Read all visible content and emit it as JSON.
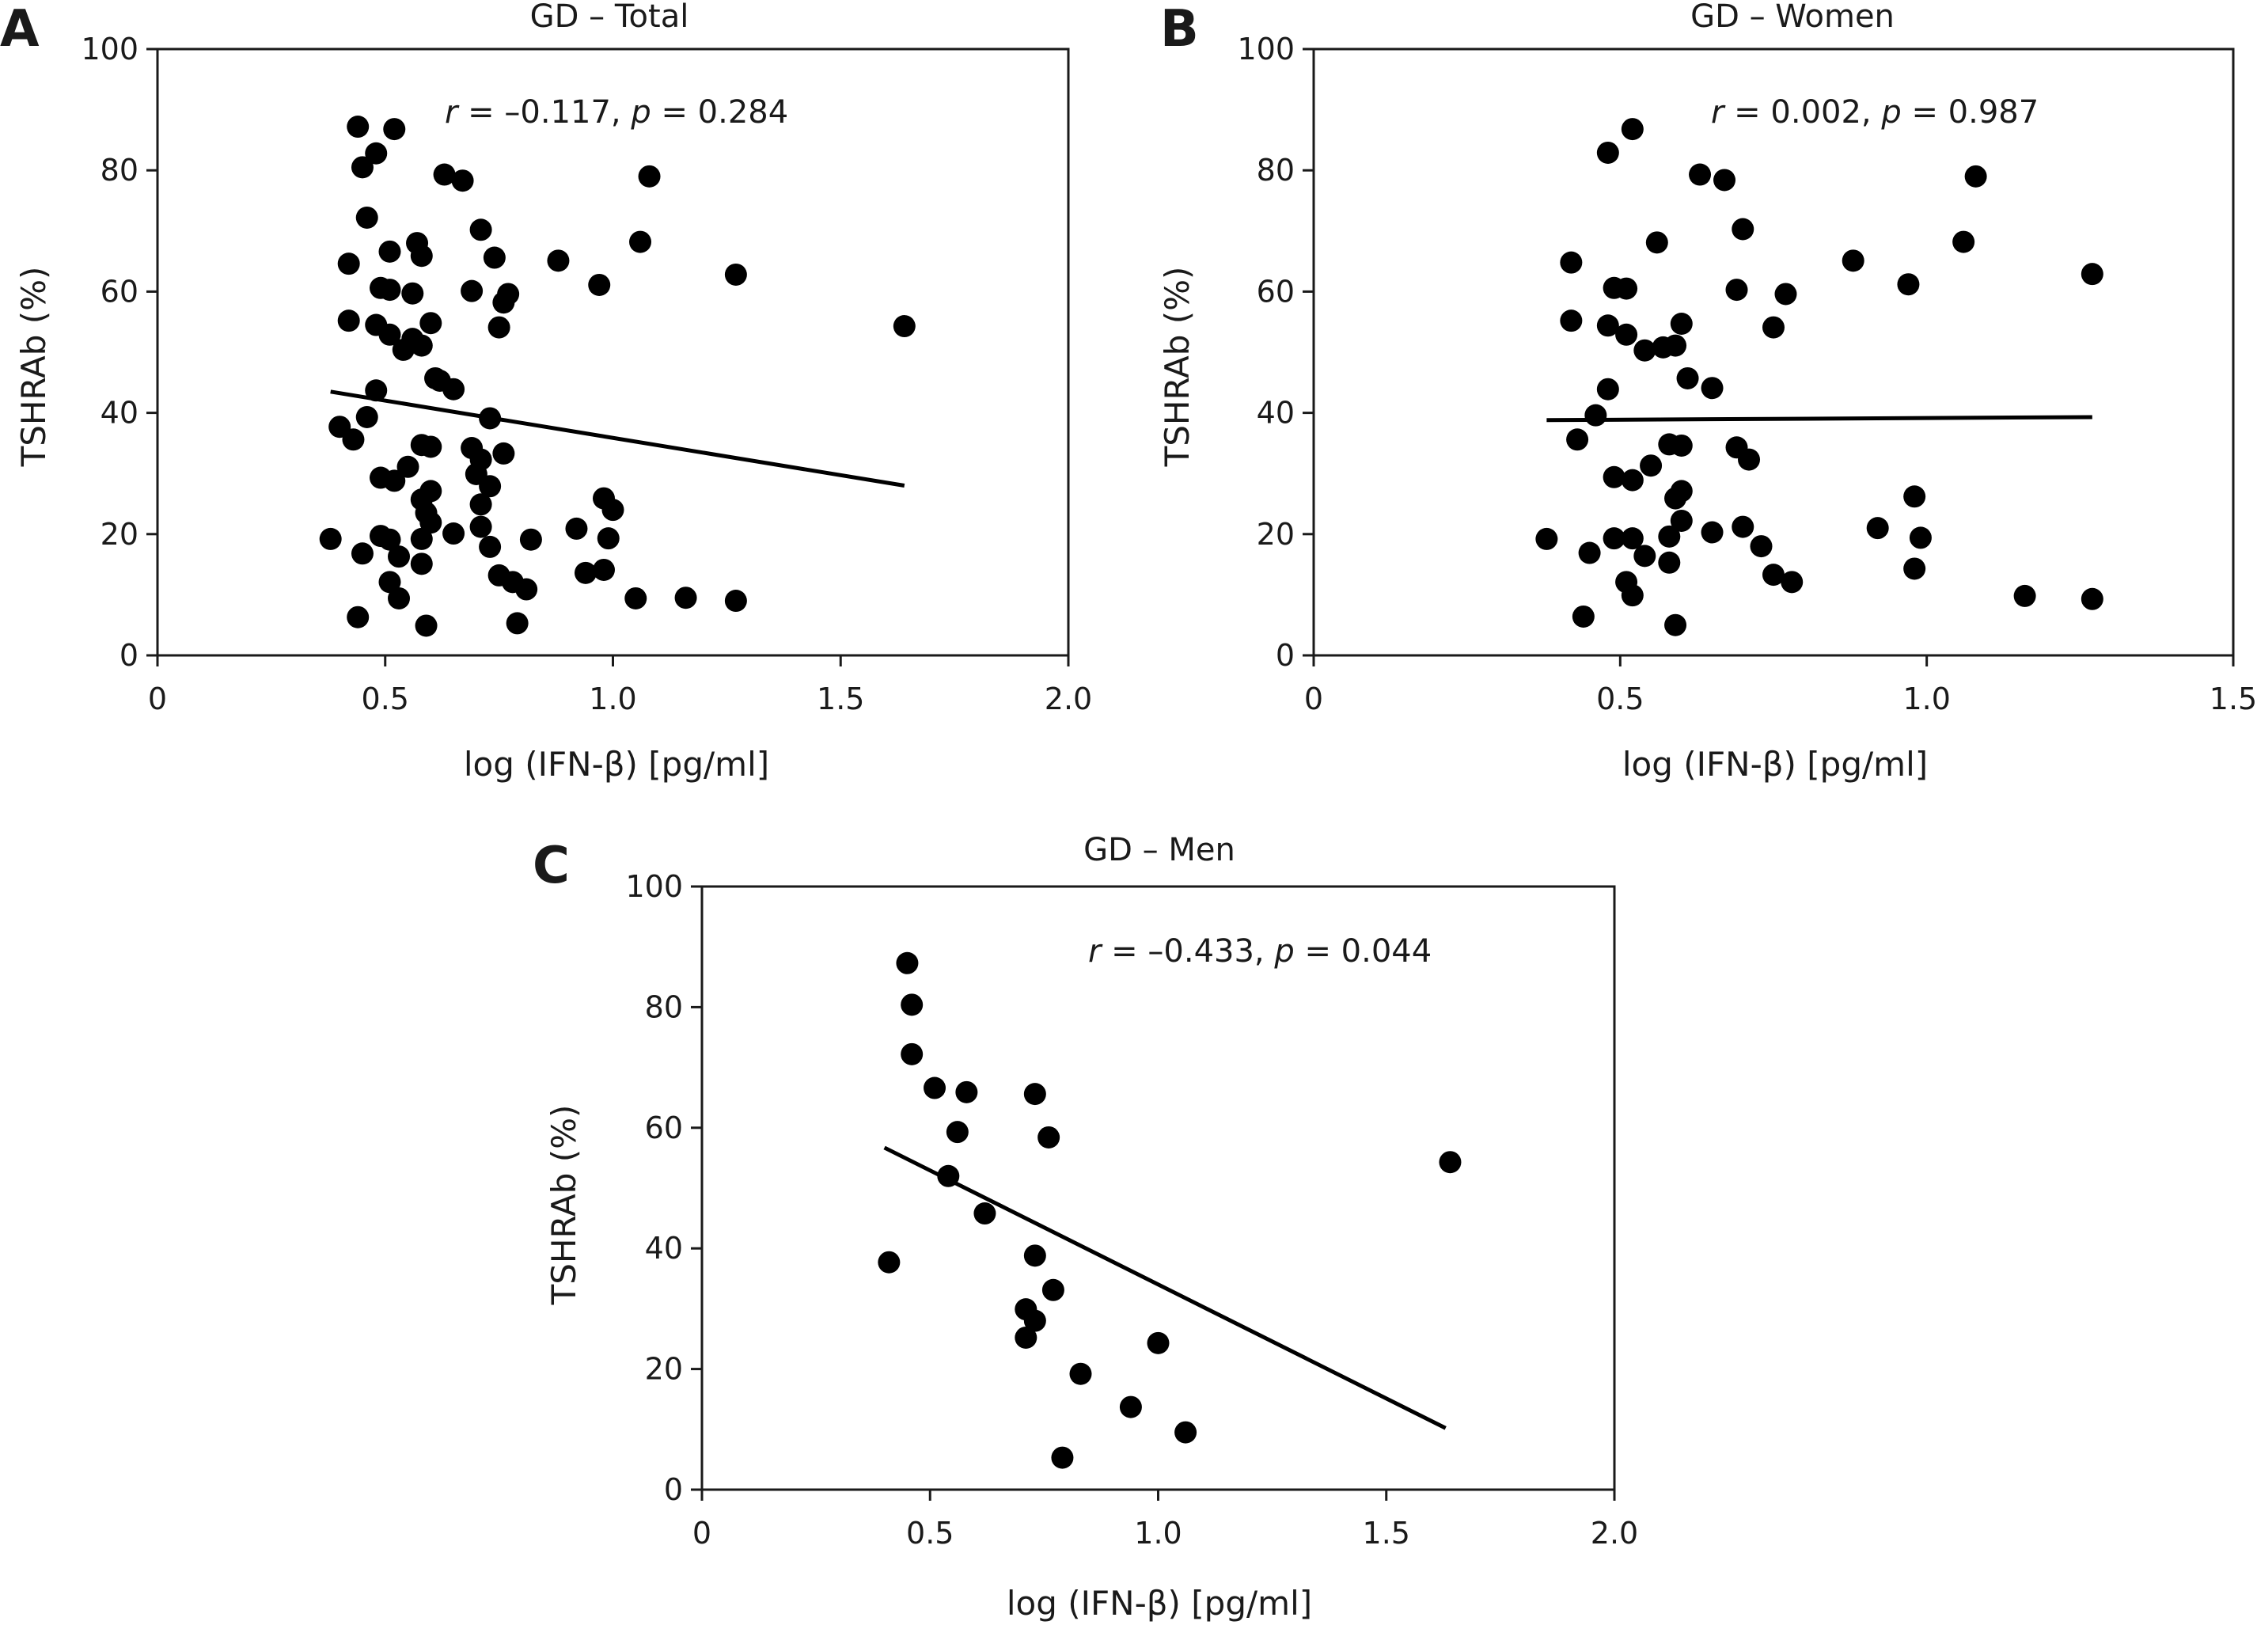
{
  "figure": {
    "colors": {
      "axis": "#1a1a1a",
      "point": "#000000",
      "line": "#000000",
      "background": "#ffffff"
    },
    "panels": [
      {
        "letter": "A",
        "title": "GD – Total",
        "stat": {
          "r_label": "r",
          "r_value": " = –0.117, ",
          "p_label": "p",
          "p_value": " = 0.284"
        },
        "xlabel": "log (IFN-β) [pg/ml]",
        "ylabel": "TSHRAb (%)"
      },
      {
        "letter": "B",
        "title": "GD – Women",
        "stat": {
          "r_label": "r",
          "r_value": " = 0.002, ",
          "p_label": "p",
          "p_value": " = 0.987"
        },
        "xlabel": "log (IFN-β) [pg/ml]",
        "ylabel": "TSHRAb (%)"
      },
      {
        "letter": "C",
        "title": "GD – Men",
        "stat": {
          "r_label": "r",
          "r_value": " = –0.433, ",
          "p_label": "p",
          "p_value": " = 0.044"
        },
        "xlabel": "log (IFN-β) [pg/ml]",
        "ylabel": "TSHRAb (%)"
      }
    ]
  },
  "chart_data": [
    {
      "type": "scatter",
      "title": "GD – Total",
      "xlabel": "log (IFN-β) [pg/ml]",
      "ylabel": "TSHRAb (%)",
      "xlim": [
        0,
        2.0
      ],
      "ylim": [
        0,
        100
      ],
      "xticks": [
        0,
        0.5,
        1.0,
        1.5,
        2.0
      ],
      "xtick_labels": [
        "0",
        "0.5",
        "1.0",
        "1.5",
        "2.0"
      ],
      "yticks": [
        0,
        20,
        40,
        60,
        80,
        100
      ],
      "ytick_labels": [
        "0",
        "20",
        "40",
        "60",
        "80",
        "100"
      ],
      "grid": false,
      "annotation": "r = –0.117, p = 0.284",
      "regression": {
        "x": [
          0.38,
          1.64
        ],
        "y": [
          43.5,
          28.0
        ]
      },
      "points": [
        [
          0.44,
          87.2
        ],
        [
          0.52,
          86.8
        ],
        [
          0.48,
          82.8
        ],
        [
          0.45,
          80.5
        ],
        [
          0.63,
          79.3
        ],
        [
          0.67,
          78.3
        ],
        [
          1.08,
          79.0
        ],
        [
          0.46,
          72.2
        ],
        [
          0.71,
          70.2
        ],
        [
          0.57,
          68.0
        ],
        [
          1.06,
          68.2
        ],
        [
          0.51,
          66.6
        ],
        [
          0.58,
          65.9
        ],
        [
          0.74,
          65.6
        ],
        [
          0.42,
          64.6
        ],
        [
          0.88,
          65.1
        ],
        [
          1.27,
          62.8
        ],
        [
          0.49,
          60.6
        ],
        [
          0.51,
          60.3
        ],
        [
          0.69,
          60.1
        ],
        [
          0.56,
          59.7
        ],
        [
          0.97,
          61.1
        ],
        [
          0.77,
          59.6
        ],
        [
          0.76,
          58.2
        ],
        [
          0.42,
          55.2
        ],
        [
          0.48,
          54.5
        ],
        [
          0.6,
          54.8
        ],
        [
          0.75,
          54.1
        ],
        [
          1.64,
          54.3
        ],
        [
          0.51,
          52.9
        ],
        [
          0.56,
          52.2
        ],
        [
          0.54,
          50.4
        ],
        [
          0.58,
          51.1
        ],
        [
          0.61,
          45.7
        ],
        [
          0.62,
          45.3
        ],
        [
          0.65,
          43.9
        ],
        [
          0.48,
          43.7
        ],
        [
          0.4,
          37.7
        ],
        [
          0.46,
          39.3
        ],
        [
          0.73,
          39.1
        ],
        [
          0.43,
          35.6
        ],
        [
          0.58,
          34.7
        ],
        [
          0.6,
          34.4
        ],
        [
          0.69,
          34.2
        ],
        [
          0.76,
          33.3
        ],
        [
          0.55,
          31.1
        ],
        [
          0.71,
          32.3
        ],
        [
          0.49,
          29.3
        ],
        [
          0.52,
          28.8
        ],
        [
          0.73,
          27.9
        ],
        [
          0.7,
          29.9
        ],
        [
          0.6,
          27.1
        ],
        [
          0.58,
          25.7
        ],
        [
          0.71,
          24.9
        ],
        [
          0.98,
          25.9
        ],
        [
          0.59,
          23.5
        ],
        [
          1.0,
          24.0
        ],
        [
          0.6,
          21.9
        ],
        [
          0.71,
          21.2
        ],
        [
          0.38,
          19.2
        ],
        [
          0.49,
          19.7
        ],
        [
          0.51,
          19.1
        ],
        [
          0.58,
          19.2
        ],
        [
          0.65,
          20.1
        ],
        [
          0.92,
          20.9
        ],
        [
          0.99,
          19.3
        ],
        [
          0.82,
          19.1
        ],
        [
          0.45,
          16.8
        ],
        [
          0.53,
          16.3
        ],
        [
          0.73,
          17.9
        ],
        [
          0.58,
          15.1
        ],
        [
          0.75,
          13.2
        ],
        [
          0.94,
          13.6
        ],
        [
          0.98,
          14.1
        ],
        [
          0.51,
          12.1
        ],
        [
          0.78,
          12.1
        ],
        [
          0.81,
          10.9
        ],
        [
          0.53,
          9.4
        ],
        [
          1.05,
          9.4
        ],
        [
          1.16,
          9.5
        ],
        [
          1.27,
          9.0
        ],
        [
          0.44,
          6.3
        ],
        [
          0.59,
          4.9
        ],
        [
          0.79,
          5.3
        ]
      ]
    },
    {
      "type": "scatter",
      "title": "GD – Women",
      "xlabel": "log (IFN-β) [pg/ml]",
      "ylabel": "TSHRAb (%)",
      "xlim": [
        0,
        1.5
      ],
      "ylim": [
        0,
        100
      ],
      "xticks": [
        0,
        0.5,
        1.0,
        1.5
      ],
      "xtick_labels": [
        "0",
        "0.5",
        "1.0",
        "1.5"
      ],
      "yticks": [
        0,
        20,
        40,
        60,
        80,
        100
      ],
      "ytick_labels": [
        "0",
        "20",
        "40",
        "60",
        "80",
        "100"
      ],
      "grid": false,
      "annotation": "r = 0.002, p = 0.987",
      "regression": {
        "x": [
          0.38,
          1.27
        ],
        "y": [
          38.8,
          39.3
        ]
      },
      "points": [
        [
          0.52,
          86.8
        ],
        [
          0.48,
          82.9
        ],
        [
          0.63,
          79.3
        ],
        [
          0.67,
          78.4
        ],
        [
          1.08,
          79.0
        ],
        [
          0.7,
          70.3
        ],
        [
          0.56,
          68.1
        ],
        [
          1.06,
          68.2
        ],
        [
          0.42,
          64.8
        ],
        [
          0.88,
          65.1
        ],
        [
          1.27,
          62.9
        ],
        [
          0.49,
          60.6
        ],
        [
          0.51,
          60.5
        ],
        [
          0.69,
          60.3
        ],
        [
          0.97,
          61.2
        ],
        [
          0.77,
          59.6
        ],
        [
          0.42,
          55.2
        ],
        [
          0.48,
          54.4
        ],
        [
          0.6,
          54.7
        ],
        [
          0.75,
          54.1
        ],
        [
          0.51,
          52.9
        ],
        [
          0.54,
          50.3
        ],
        [
          0.57,
          50.8
        ],
        [
          0.59,
          51.1
        ],
        [
          0.61,
          45.7
        ],
        [
          0.65,
          44.1
        ],
        [
          0.48,
          43.9
        ],
        [
          0.46,
          39.6
        ],
        [
          0.43,
          35.6
        ],
        [
          0.58,
          34.8
        ],
        [
          0.6,
          34.6
        ],
        [
          0.69,
          34.3
        ],
        [
          0.71,
          32.3
        ],
        [
          0.55,
          31.3
        ],
        [
          0.49,
          29.4
        ],
        [
          0.52,
          28.9
        ],
        [
          0.6,
          27.1
        ],
        [
          0.59,
          25.9
        ],
        [
          0.98,
          26.2
        ],
        [
          0.6,
          22.2
        ],
        [
          0.7,
          21.2
        ],
        [
          0.92,
          21.0
        ],
        [
          0.38,
          19.2
        ],
        [
          0.49,
          19.3
        ],
        [
          0.52,
          19.3
        ],
        [
          0.58,
          19.6
        ],
        [
          0.65,
          20.3
        ],
        [
          0.99,
          19.4
        ],
        [
          0.73,
          18.0
        ],
        [
          0.45,
          16.9
        ],
        [
          0.54,
          16.4
        ],
        [
          0.58,
          15.3
        ],
        [
          0.75,
          13.3
        ],
        [
          0.98,
          14.3
        ],
        [
          0.51,
          12.1
        ],
        [
          0.78,
          12.1
        ],
        [
          0.52,
          9.9
        ],
        [
          1.16,
          9.8
        ],
        [
          1.27,
          9.3
        ],
        [
          0.44,
          6.4
        ],
        [
          0.59,
          5.0
        ]
      ]
    },
    {
      "type": "scatter",
      "title": "GD – Men",
      "xlabel": "log (IFN-β) [pg/ml]",
      "ylabel": "TSHRAb (%)",
      "xlim": [
        0,
        2.0
      ],
      "ylim": [
        0,
        100
      ],
      "xticks": [
        0,
        0.5,
        1.0,
        1.5,
        2.0
      ],
      "xtick_labels": [
        "0",
        "0.5",
        "1.0",
        "1.5",
        "2.0"
      ],
      "yticks": [
        0,
        20,
        40,
        60,
        80,
        100
      ],
      "ytick_labels": [
        "0",
        "20",
        "40",
        "60",
        "80",
        "100"
      ],
      "grid": false,
      "annotation": "r = –0.433, p = 0.044",
      "regression": {
        "x": [
          0.4,
          1.63
        ],
        "y": [
          56.7,
          10.2
        ]
      },
      "points": [
        [
          0.45,
          87.3
        ],
        [
          0.46,
          80.4
        ],
        [
          0.46,
          72.2
        ],
        [
          0.51,
          66.6
        ],
        [
          0.58,
          65.9
        ],
        [
          0.73,
          65.6
        ],
        [
          0.56,
          59.3
        ],
        [
          0.76,
          58.4
        ],
        [
          0.54,
          52.0
        ],
        [
          0.62,
          45.8
        ],
        [
          1.64,
          54.3
        ],
        [
          0.41,
          37.7
        ],
        [
          0.73,
          38.8
        ],
        [
          0.77,
          33.1
        ],
        [
          0.71,
          29.9
        ],
        [
          0.73,
          28.0
        ],
        [
          0.71,
          25.2
        ],
        [
          1.0,
          24.3
        ],
        [
          0.83,
          19.2
        ],
        [
          0.94,
          13.7
        ],
        [
          1.06,
          9.5
        ],
        [
          0.79,
          5.3
        ]
      ]
    }
  ]
}
